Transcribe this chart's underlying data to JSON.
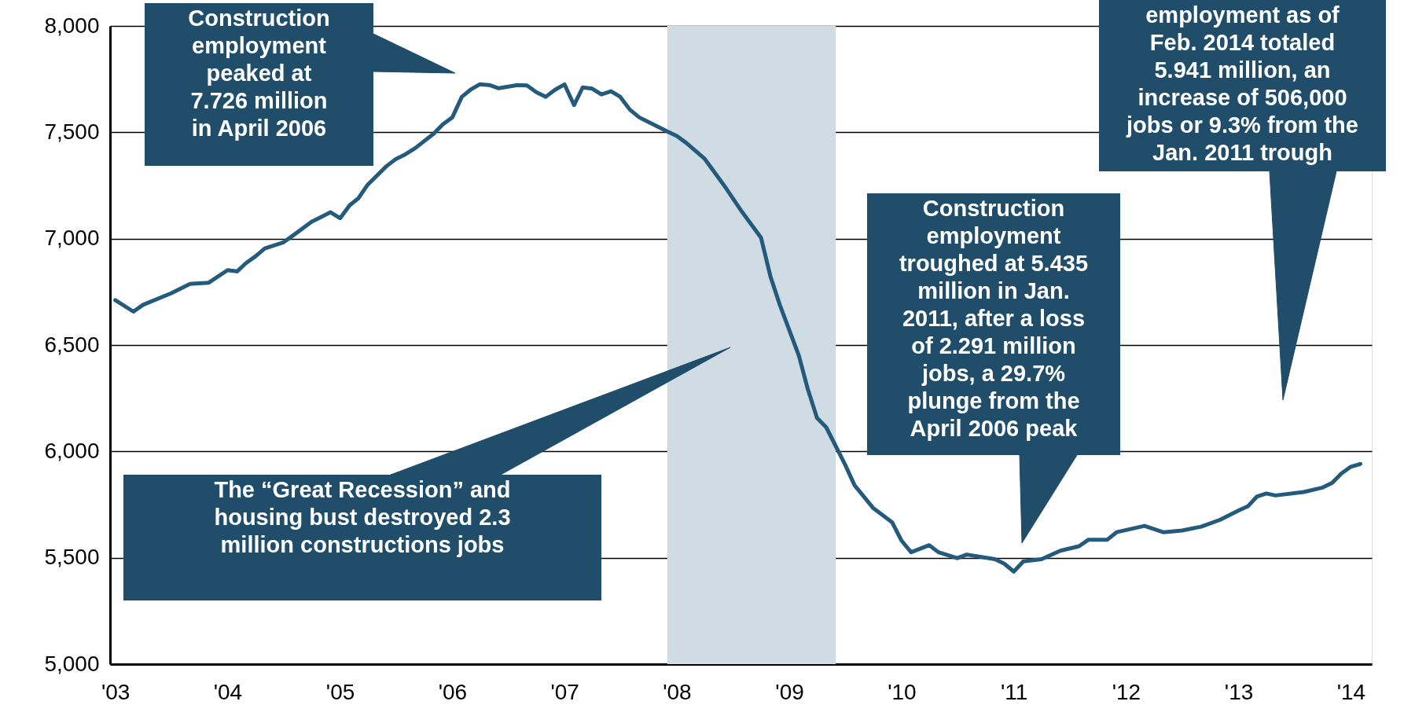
{
  "chart_data": {
    "type": "line",
    "x": [
      "2003-01",
      "2003-03",
      "2003-04",
      "2003-07",
      "2003-09",
      "2003-11",
      "2004-01",
      "2004-02",
      "2004-03",
      "2004-04",
      "2004-05",
      "2004-07",
      "2004-08",
      "2004-10",
      "2004-11",
      "2004-12",
      "2005-01",
      "2005-02",
      "2005-03",
      "2005-04",
      "2005-06",
      "2005-07",
      "2005-08",
      "2005-09",
      "2005-11",
      "2005-12",
      "2006-01",
      "2006-02",
      "2006-03",
      "2006-04",
      "2006-05",
      "2006-06",
      "2006-08",
      "2006-09",
      "2006-10",
      "2006-11",
      "2006-12",
      "2007-01",
      "2007-02",
      "2007-03",
      "2007-04",
      "2007-05",
      "2007-06",
      "2007-07",
      "2007-08",
      "2007-09",
      "2007-10",
      "2007-12",
      "2008-01",
      "2008-02",
      "2008-04",
      "2008-06",
      "2008-08",
      "2008-10",
      "2008-11",
      "2008-12",
      "2009-02",
      "2009-03",
      "2009-04",
      "2009-05",
      "2009-07",
      "2009-08",
      "2009-10",
      "2009-12",
      "2010-01",
      "2010-02",
      "2010-04",
      "2010-05",
      "2010-07",
      "2010-08",
      "2010-11",
      "2010-12",
      "2011-01",
      "2011-02",
      "2011-04",
      "2011-06",
      "2011-08",
      "2011-09",
      "2011-11",
      "2011-12",
      "2012-03",
      "2012-05",
      "2012-07",
      "2012-09",
      "2012-11",
      "2013-01",
      "2013-02",
      "2013-03",
      "2013-04",
      "2013-05",
      "2013-08",
      "2013-10",
      "2013-11",
      "2013-12",
      "2014-01",
      "2014-02"
    ],
    "series": [
      {
        "color": "#245a7c",
        "values": [
          6711,
          6657,
          6689,
          6743,
          6787,
          6793,
          6852,
          6846,
          6885,
          6917,
          6954,
          6983,
          7015,
          7080,
          7102,
          7124,
          7096,
          7157,
          7189,
          7254,
          7341,
          7374,
          7396,
          7424,
          7493,
          7537,
          7570,
          7667,
          7700,
          7726,
          7722,
          7707,
          7722,
          7720,
          7689,
          7667,
          7700,
          7725,
          7628,
          7711,
          7705,
          7678,
          7693,
          7667,
          7607,
          7570,
          7548,
          7504,
          7483,
          7450,
          7375,
          7254,
          7124,
          7004,
          6820,
          6689,
          6450,
          6298,
          6157,
          6113,
          5939,
          5841,
          5733,
          5667,
          5580,
          5526,
          5559,
          5526,
          5498,
          5515,
          5493,
          5472,
          5435,
          5483,
          5493,
          5533,
          5554,
          5585,
          5585,
          5620,
          5650,
          5620,
          5628,
          5646,
          5678,
          5722,
          5743,
          5787,
          5802,
          5793,
          5809,
          5830,
          5852,
          5896,
          5928,
          5941
        ]
      }
    ],
    "xlim": [
      "2002-12-15",
      "2014-03-10"
    ],
    "xticks": [
      {
        "value": "2003-01",
        "label": "'03"
      },
      {
        "value": "2004-01",
        "label": "'04"
      },
      {
        "value": "2005-01",
        "label": "'05"
      },
      {
        "value": "2006-01",
        "label": "'06"
      },
      {
        "value": "2007-01",
        "label": "'07"
      },
      {
        "value": "2008-01",
        "label": "'08"
      },
      {
        "value": "2009-01",
        "label": "'09"
      },
      {
        "value": "2010-01",
        "label": "'10"
      },
      {
        "value": "2011-01",
        "label": "'11"
      },
      {
        "value": "2012-01",
        "label": "'12"
      },
      {
        "value": "2013-01",
        "label": "'13"
      },
      {
        "value": "2014-01",
        "label": "'14"
      }
    ],
    "ylim": [
      5000,
      8000
    ],
    "yticks": [
      {
        "value": 5000,
        "label": "5,000"
      },
      {
        "value": 5500,
        "label": "5,500"
      },
      {
        "value": 6000,
        "label": "6,000"
      },
      {
        "value": 6500,
        "label": "6,500"
      },
      {
        "value": 7000,
        "label": "7,000"
      },
      {
        "value": 7500,
        "label": "7,500"
      },
      {
        "value": 8000,
        "label": "8,000"
      }
    ],
    "grid": "y",
    "marker": "none",
    "line_style": "solid",
    "bands": [
      {
        "axis": "x",
        "from": "2007-12",
        "to": "2009-06",
        "color": "#d0dce4"
      }
    ],
    "annotations": [
      "Construction\nemployment\npeaked at\n7.726 million\nin April 2006",
      "The “Great Recession” and\nhousing bust destroyed 2.3\nmillion constructions jobs",
      "Construction\nemployment\ntroughed at 5.435\nmillion in Jan.\n2011, after a loss\nof 2.291 million\njobs, a 29.7%\nplunge from the\nApril 2006 peak",
      "employment as of\nFeb. 2014 totaled\n5.941 million, an\nincrease of 506,000\njobs or 9.3% from the\nJan. 2011 trough"
    ]
  }
}
